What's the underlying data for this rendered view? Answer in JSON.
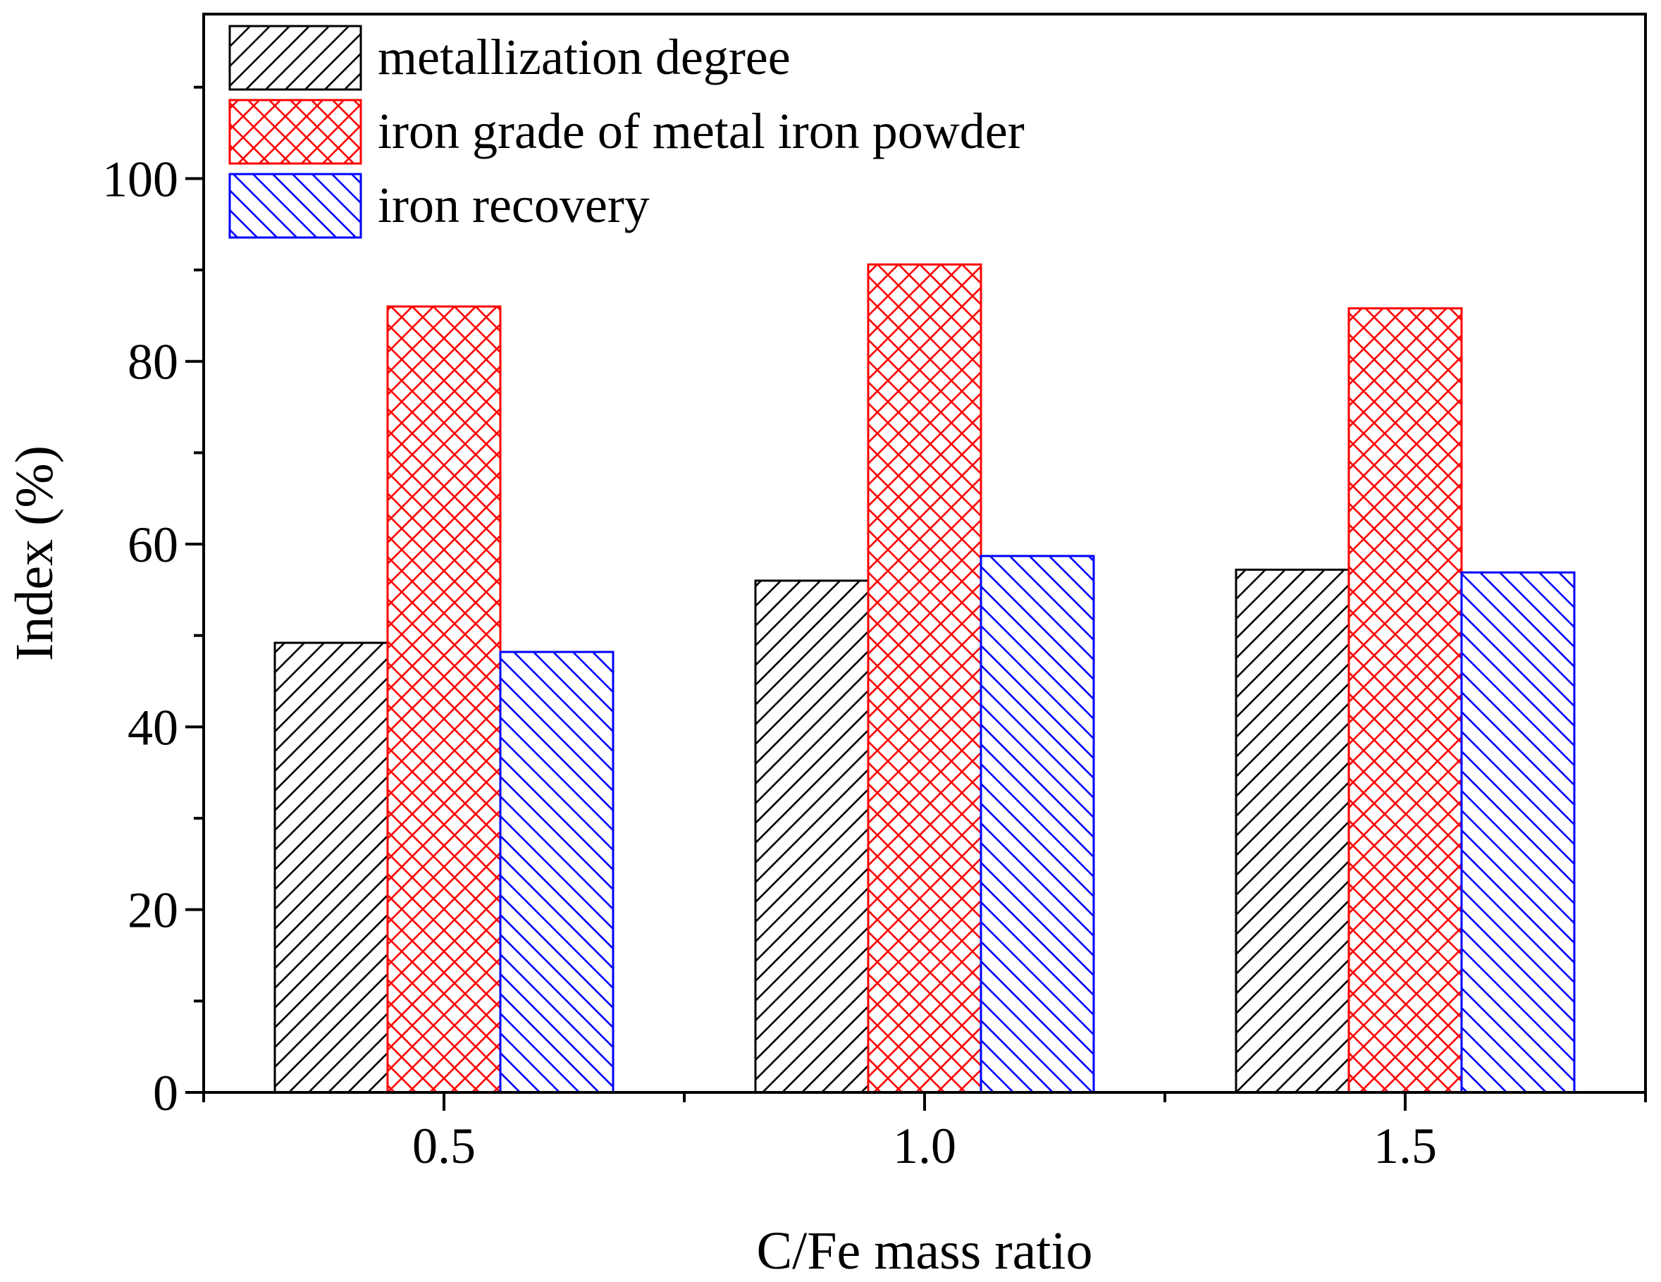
{
  "chart_data": {
    "type": "bar",
    "title": "",
    "xlabel": "C/Fe mass ratio",
    "ylabel": "Index (%)",
    "categories": [
      "0.5",
      "1.0",
      "1.5"
    ],
    "ylim": [
      0,
      118
    ],
    "yticks": [
      0,
      20,
      40,
      60,
      80,
      100
    ],
    "ytick_labels": [
      "0",
      "20",
      "40",
      "60",
      "80",
      "100"
    ],
    "grid": false,
    "legend_position": "top-left",
    "series": [
      {
        "name": "metallization degree",
        "values": [
          49.2,
          56.0,
          57.2
        ],
        "color": "#000000",
        "pattern": "diagonal-up"
      },
      {
        "name": "iron grade of metal iron powder",
        "values": [
          86.0,
          90.6,
          85.8
        ],
        "color": "#ff0000",
        "pattern": "crosshatch"
      },
      {
        "name": "iron recovery",
        "values": [
          48.2,
          58.7,
          56.9
        ],
        "color": "#0000ff",
        "pattern": "diagonal-down"
      }
    ]
  }
}
